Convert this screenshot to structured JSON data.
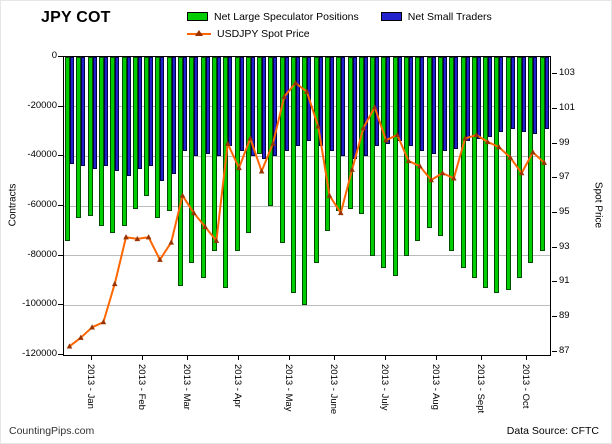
{
  "footer": {
    "left": "CountingPips.com",
    "right": "Data Source: CFTC"
  },
  "chart_data": {
    "type": "bar-line-combo",
    "title": "JPY COT",
    "x_axis": {
      "unit": "week",
      "month_labels": [
        "2013 - Jan",
        "2013 - Feb",
        "2013 - Mar",
        "2013 - Apr",
        "2013 - May",
        "2013 - June",
        "2013 - July",
        "2013 - Aug",
        "2013 - Sept",
        "2013 - Oct"
      ],
      "month_start_index": [
        0,
        5,
        9,
        13,
        18,
        22,
        26,
        31,
        35,
        39
      ]
    },
    "left_axis": {
      "label": "Contracts",
      "min": -120000,
      "max": 0,
      "tick_step": 20000
    },
    "right_axis": {
      "label": "Spot Price",
      "min": 87,
      "max": 103,
      "tick_step": 2
    },
    "grid": "horizontal",
    "legend_position": "top",
    "series": [
      {
        "name": "Net Large Speculator Positions",
        "type": "bar",
        "axis": "left",
        "color": "#00CC00",
        "values": [
          -74000,
          -65000,
          -64000,
          -68000,
          -71000,
          -68000,
          -61000,
          -56000,
          -65000,
          -62000,
          -92000,
          -83000,
          -89000,
          -78000,
          -93000,
          -78000,
          -71000,
          -39000,
          -60000,
          -75000,
          -95000,
          -100000,
          -83000,
          -70000,
          -62000,
          -61000,
          -63000,
          -80000,
          -85000,
          -88000,
          -80000,
          -74000,
          -69000,
          -72000,
          -78000,
          -85000,
          -89000,
          -93000,
          -95000,
          -94000,
          -89000,
          -83000,
          -78000
        ]
      },
      {
        "name": "Net Small Traders",
        "type": "bar",
        "axis": "left",
        "color": "#2222CC",
        "values": [
          -43000,
          -44000,
          -45000,
          -44000,
          -46000,
          -48000,
          -45000,
          -44000,
          -50000,
          -47000,
          -38000,
          -40000,
          -39000,
          -40000,
          -36000,
          -38000,
          -40000,
          -41000,
          -40000,
          -38000,
          -36000,
          -34000,
          -36000,
          -38000,
          -40000,
          -41000,
          -40000,
          -36000,
          -35000,
          -34000,
          -36000,
          -38000,
          -39000,
          -38000,
          -37000,
          -34000,
          -33000,
          -32000,
          -30000,
          -29000,
          -30000,
          -31000,
          -29000
        ]
      },
      {
        "name": "USDJPY Spot Price",
        "type": "line",
        "axis": "right",
        "color": "#FF6600",
        "marker_color": "#993300",
        "values": [
          87.3,
          87.8,
          88.4,
          88.7,
          90.9,
          93.6,
          93.5,
          93.6,
          92.3,
          93.3,
          96.0,
          95.0,
          94.2,
          93.4,
          99.0,
          97.6,
          99.3,
          97.4,
          99.0,
          101.7,
          102.5,
          102.0,
          100.0,
          96.0,
          95.0,
          97.5,
          99.9,
          101.1,
          99.2,
          99.5,
          98.0,
          97.7,
          96.9,
          97.3,
          97.0,
          99.3,
          99.5,
          99.1,
          98.8,
          98.2,
          97.3,
          98.5,
          97.9
        ]
      }
    ]
  }
}
